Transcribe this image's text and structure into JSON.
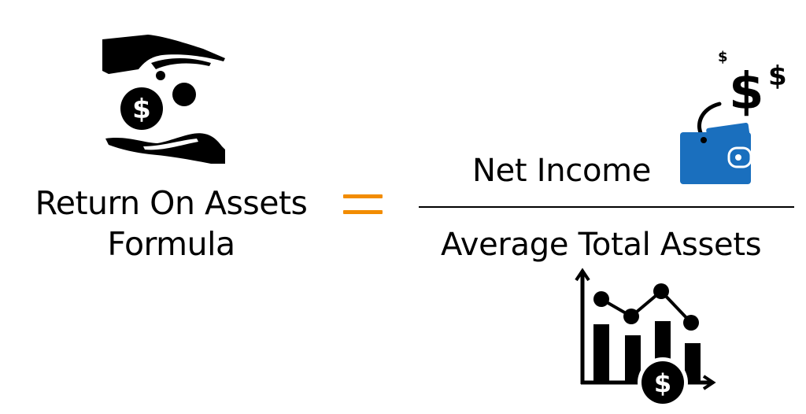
{
  "formula": {
    "title_line1": "Return On Assets",
    "title_line2": "Formula",
    "operator": "=",
    "numerator": "Net Income",
    "denominator": "Average Total Assets"
  },
  "icons": {
    "top_left": "hands-holding-coins-icon",
    "top_right_money": "dollar-signs-icon",
    "top_right_wallet": "wallet-icon",
    "bottom_right": "bar-line-chart-dollar-icon"
  },
  "colors": {
    "text": "#000000",
    "operator": "#F28C00",
    "wallet": "#1A6FBE",
    "background": "#FFFFFF"
  }
}
